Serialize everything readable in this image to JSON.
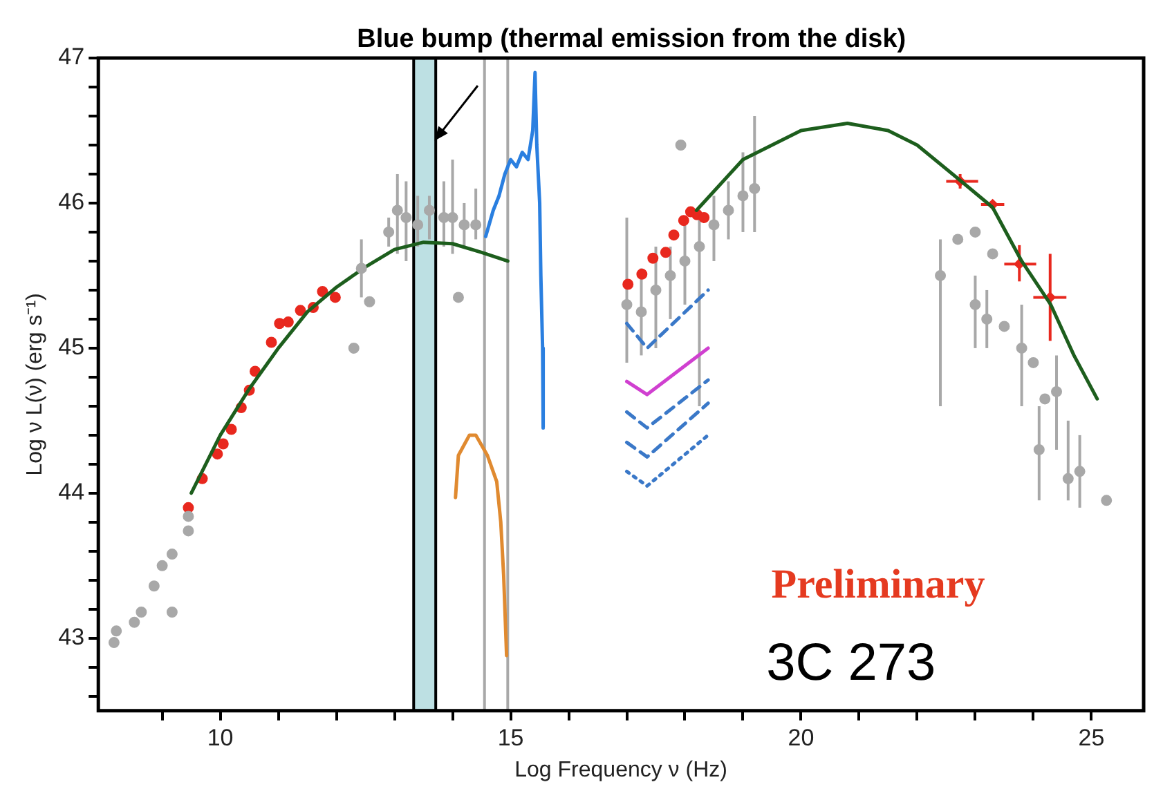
{
  "chart_data": {
    "type": "scatter",
    "xlabel": "Log Frequency ν (Hz)",
    "ylabel": "Log ν L(ν) (erg s⁻¹)",
    "xlim": [
      7.9,
      25.9
    ],
    "ylim": [
      42.5,
      47
    ],
    "xticks": [
      {
        "value": 9,
        "label": null
      },
      10,
      {
        "value": 11,
        "label": null
      },
      {
        "value": 12,
        "label": null
      },
      {
        "value": 13,
        "label": null
      },
      {
        "value": 14,
        "label": null
      },
      15,
      {
        "value": 16,
        "label": null
      },
      {
        "value": 17,
        "label": null
      },
      {
        "value": 18,
        "label": null
      },
      {
        "value": 19,
        "label": null
      },
      20,
      {
        "value": 21,
        "label": null
      },
      {
        "value": 22,
        "label": null
      },
      {
        "value": 23,
        "label": null
      },
      {
        "value": 24,
        "label": null
      },
      25
    ],
    "yticks": [
      {
        "value": 42.6,
        "label": null
      },
      {
        "value": 42.8,
        "label": null
      },
      43,
      {
        "value": 43.2,
        "label": null
      },
      {
        "value": 43.4,
        "label": null
      },
      {
        "value": 43.6,
        "label": null
      },
      {
        "value": 43.8,
        "label": null
      },
      44,
      {
        "value": 44.2,
        "label": null
      },
      {
        "value": 44.4,
        "label": null
      },
      {
        "value": 44.6,
        "label": null
      },
      {
        "value": 44.8,
        "label": null
      },
      45,
      {
        "value": 45.2,
        "label": null
      },
      {
        "value": 45.4,
        "label": null
      },
      {
        "value": 45.6,
        "label": null
      },
      {
        "value": 45.8,
        "label": null
      },
      46,
      {
        "value": 46.2,
        "label": null
      },
      {
        "value": 46.4,
        "label": null
      },
      {
        "value": 46.6,
        "label": null
      },
      {
        "value": 46.8,
        "label": null
      },
      47
    ],
    "grid": false,
    "legend": false,
    "marker": "circle",
    "bands": [
      {
        "axis": "x",
        "from": 13.33,
        "to": 13.71,
        "color": "#bde0e3"
      }
    ],
    "ref_lines": [
      {
        "axis": "x",
        "value": 14.55,
        "color": "#a8a8a8"
      },
      {
        "axis": "x",
        "value": 14.95,
        "color": "#a8a8a8"
      }
    ],
    "annotations": [
      {
        "text": "Blue bump (thermal emission from the disk)",
        "x": 13.69,
        "y": 46.43
      },
      "Preliminary",
      "3C 273"
    ],
    "series": [
      {
        "color": "#a8a8a8",
        "x": [
          8.17,
          8.21,
          8.52,
          8.64,
          8.86,
          9.0,
          9.17,
          9.17,
          9.45,
          9.45,
          12.3,
          12.43,
          12.57,
          12.9,
          13.05,
          13.2,
          13.4,
          13.6,
          13.85,
          14.0,
          14.2,
          14.4,
          14.1,
          17.0,
          17.25,
          17.5,
          17.75,
          18.0,
          18.25,
          18.5,
          18.75,
          19.0,
          19.2,
          17.93,
          22.4,
          22.7,
          23.0,
          23.3,
          23.0,
          23.2,
          23.5,
          23.8,
          24.0,
          24.2,
          24.4,
          24.6,
          24.8,
          24.1,
          25.26
        ],
        "values": [
          42.97,
          43.05,
          43.11,
          43.18,
          43.36,
          43.5,
          43.58,
          43.18,
          43.74,
          43.84,
          45.0,
          45.55,
          45.32,
          45.8,
          45.95,
          45.9,
          45.85,
          45.95,
          45.9,
          45.9,
          45.85,
          45.85,
          45.35,
          45.3,
          45.25,
          45.4,
          45.5,
          45.6,
          45.7,
          45.85,
          45.95,
          46.05,
          46.1,
          46.4,
          45.5,
          45.75,
          45.8,
          45.65,
          45.3,
          45.2,
          45.15,
          45.0,
          44.9,
          44.65,
          44.7,
          44.1,
          44.15,
          44.3,
          43.95
        ],
        "errors": [
          null,
          null,
          null,
          null,
          null,
          null,
          null,
          null,
          null,
          null,
          null,
          [
            45.35,
            45.75
          ],
          null,
          [
            45.7,
            45.9
          ],
          [
            45.65,
            46.2
          ],
          [
            45.6,
            46.15
          ],
          [
            45.7,
            46.05
          ],
          [
            45.75,
            46.05
          ],
          [
            45.7,
            46.15
          ],
          [
            45.65,
            46.3
          ],
          [
            45.7,
            46.0
          ],
          [
            45.75,
            46.1
          ],
          null,
          [
            44.9,
            45.9
          ],
          [
            44.95,
            45.55
          ],
          [
            45.0,
            45.7
          ],
          [
            45.2,
            45.7
          ],
          [
            45.3,
            45.85
          ],
          [
            44.6,
            45.95
          ],
          [
            45.6,
            46.05
          ],
          [
            45.75,
            46.15
          ],
          [
            45.8,
            46.35
          ],
          [
            45.8,
            46.6
          ],
          null,
          [
            44.6,
            45.75
          ],
          null,
          null,
          null,
          [
            45.0,
            45.5
          ],
          [
            45.0,
            45.4
          ],
          null,
          [
            44.6,
            45.3
          ],
          null,
          null,
          [
            44.3,
            44.95
          ],
          [
            43.95,
            44.5
          ],
          [
            43.9,
            44.4
          ],
          [
            43.95,
            44.6
          ],
          null
        ]
      },
      {
        "type": "line",
        "color": "#1d5e1d",
        "marker": "none",
        "x": [
          9.5,
          10,
          10.5,
          11,
          11.5,
          12,
          12.5,
          13,
          13.5,
          14,
          14.5,
          14.95
        ],
        "values": [
          44.0,
          44.4,
          44.72,
          45.0,
          45.25,
          45.42,
          45.56,
          45.68,
          45.73,
          45.72,
          45.66,
          45.6
        ]
      },
      {
        "type": "line",
        "color": "#1d5e1d",
        "marker": "none",
        "x": [
          18.2,
          19,
          20,
          20.8,
          21.5,
          22,
          22.7,
          23.3,
          23.8,
          24.3,
          24.7,
          25.1
        ],
        "values": [
          45.95,
          46.3,
          46.5,
          46.55,
          46.5,
          46.4,
          46.17,
          45.97,
          45.6,
          45.3,
          44.95,
          44.65
        ]
      },
      {
        "type": "line",
        "color": "#2a7fe0",
        "marker": "none",
        "x": [
          14.57,
          14.7,
          14.8,
          14.9,
          15.0,
          15.1,
          15.2,
          15.3,
          15.38,
          15.42,
          15.45,
          15.5,
          15.52,
          15.55,
          15.56
        ],
        "values": [
          45.77,
          45.95,
          46.05,
          46.2,
          46.3,
          46.25,
          46.35,
          46.3,
          46.5,
          46.9,
          46.4,
          46.0,
          45.5,
          45.0,
          44.45
        ]
      },
      {
        "type": "line",
        "color": "#e08a30",
        "marker": "none",
        "x": [
          14.05,
          14.1,
          14.29,
          14.4,
          14.6,
          14.76,
          14.83,
          14.88,
          14.93
        ],
        "values": [
          43.97,
          44.26,
          44.4,
          44.4,
          44.26,
          44.08,
          43.8,
          43.43,
          42.88
        ]
      },
      {
        "type": "line",
        "color": "#3a78c8",
        "marker": "none",
        "line_style": "dashed",
        "x": [
          17.0,
          17.35,
          18.4
        ],
        "values": [
          45.17,
          45.0,
          45.4
        ]
      },
      {
        "type": "line",
        "color": "#d040d0",
        "marker": "none",
        "x": [
          17.0,
          17.35,
          18.4
        ],
        "values": [
          44.77,
          44.68,
          45.0
        ]
      },
      {
        "type": "line",
        "color": "#3a78c8",
        "marker": "none",
        "line_style": "dashed",
        "x": [
          17.0,
          17.35,
          18.4
        ],
        "values": [
          44.56,
          44.45,
          44.78
        ]
      },
      {
        "type": "line",
        "color": "#3a78c8",
        "marker": "none",
        "line_style": "dashed",
        "x": [
          17.0,
          17.35,
          18.4
        ],
        "values": [
          44.35,
          44.25,
          44.62
        ]
      },
      {
        "type": "line",
        "color": "#3a78c8",
        "marker": "none",
        "line_style": "dotted",
        "x": [
          17.0,
          17.35,
          18.4
        ],
        "values": [
          44.15,
          44.05,
          44.4
        ]
      },
      {
        "type": "scatter",
        "color": "#e8281e",
        "x": [
          9.45,
          9.69,
          9.95,
          10.05,
          10.19,
          10.36,
          10.5,
          10.6,
          10.88,
          11.02,
          11.17,
          11.38,
          11.6,
          11.76,
          11.98
        ],
        "values": [
          43.9,
          44.1,
          44.27,
          44.34,
          44.44,
          44.59,
          44.71,
          44.84,
          45.04,
          45.17,
          45.18,
          45.26,
          45.28,
          45.39,
          45.35
        ]
      },
      {
        "type": "scatter",
        "color": "#e8281e",
        "x": [
          17.02,
          17.26,
          17.45,
          17.67,
          17.81,
          17.98,
          18.1,
          18.21,
          18.33
        ],
        "values": [
          45.44,
          45.51,
          45.62,
          45.66,
          45.78,
          45.88,
          45.94,
          45.92,
          45.9
        ]
      },
      {
        "type": "scatter",
        "color": "#e8281e",
        "marker": "diamond",
        "x": [
          22.74,
          23.3,
          23.76,
          24.29
        ],
        "values": [
          46.15,
          45.99,
          45.58,
          45.35
        ],
        "xerrors": [
          [
            22.5,
            23.05
          ],
          [
            23.1,
            23.5
          ],
          [
            23.5,
            24.05
          ],
          [
            24.0,
            24.57
          ]
        ],
        "errors": [
          [
            46.1,
            46.2
          ],
          null,
          [
            45.46,
            45.71
          ],
          [
            45.05,
            45.65
          ]
        ]
      }
    ]
  }
}
